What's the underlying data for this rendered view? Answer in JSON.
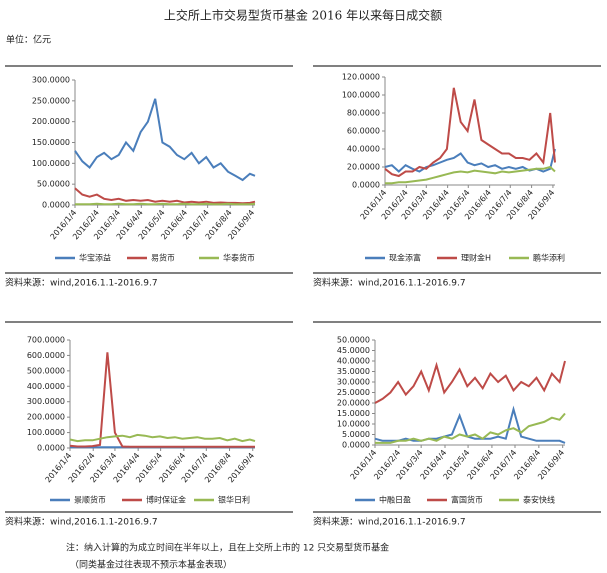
{
  "header": {
    "title": "上交所上市交易型货币基金 2016 年以来每日成交额",
    "unit": "单位：亿元"
  },
  "chart_data": [
    {
      "type": "line",
      "source": "资料来源：wind,2016.1.1-2016.9.7",
      "x": [
        "2016/1/4",
        "2016/1/14",
        "2016/1/24",
        "2016/2/3",
        "2016/2/13",
        "2016/2/23",
        "2016/3/4",
        "2016/3/14",
        "2016/3/24",
        "2016/4/3",
        "2016/4/13",
        "2016/4/23",
        "2016/5/3",
        "2016/5/13",
        "2016/5/23",
        "2016/6/2",
        "2016/6/12",
        "2016/6/22",
        "2016/7/2",
        "2016/7/12",
        "2016/7/22",
        "2016/8/1",
        "2016/8/11",
        "2016/8/21",
        "2016/8/31",
        "2016/9/7"
      ],
      "xlim": [
        "2016/1/4",
        "2016/9/7"
      ],
      "xticks": [
        "2016/1/4",
        "2016/2/4",
        "2016/3/4",
        "2016/4/4",
        "2016/5/4",
        "2016/6/4",
        "2016/7/4",
        "2016/8/4",
        "2016/9/4"
      ],
      "ylim": [
        0,
        300
      ],
      "yticks": [
        {
          "value": 0,
          "label": "0.0000"
        },
        {
          "value": 50,
          "label": "50.0000"
        },
        {
          "value": 100,
          "label": "100.0000"
        },
        {
          "value": 150,
          "label": "150.0000"
        },
        {
          "value": 200,
          "label": "200.0000"
        },
        {
          "value": 250,
          "label": "250.0000"
        },
        {
          "value": 300,
          "label": "300.0000"
        }
      ],
      "series": [
        {
          "name": "华宝添益",
          "color": "#4a7ebb",
          "values": [
            130,
            105,
            90,
            115,
            125,
            110,
            120,
            150,
            130,
            175,
            200,
            255,
            150,
            140,
            120,
            110,
            125,
            100,
            115,
            90,
            100,
            80,
            70,
            60,
            75,
            70
          ]
        },
        {
          "name": "易货币",
          "color": "#be4b48",
          "values": [
            40,
            25,
            20,
            25,
            15,
            12,
            15,
            10,
            12,
            10,
            12,
            8,
            10,
            8,
            10,
            6,
            8,
            6,
            8,
            5,
            6,
            5,
            5,
            4,
            5,
            8
          ]
        },
        {
          "name": "华泰货币",
          "color": "#98b954",
          "values": [
            2,
            2,
            2,
            3,
            2,
            2,
            3,
            2,
            2,
            3,
            2,
            2,
            3,
            2,
            2,
            3,
            2,
            2,
            3,
            2,
            2,
            3,
            2,
            2,
            2,
            3
          ]
        }
      ]
    },
    {
      "type": "line",
      "source": "资料来源：wind,2016.1.1-2016.9.7",
      "x": [
        "2016/1/4",
        "2016/1/14",
        "2016/1/24",
        "2016/2/3",
        "2016/2/13",
        "2016/2/23",
        "2016/3/4",
        "2016/3/14",
        "2016/3/24",
        "2016/4/3",
        "2016/4/13",
        "2016/4/23",
        "2016/5/3",
        "2016/5/13",
        "2016/5/23",
        "2016/6/2",
        "2016/6/12",
        "2016/6/22",
        "2016/7/2",
        "2016/7/12",
        "2016/7/22",
        "2016/8/1",
        "2016/8/11",
        "2016/8/21",
        "2016/8/31",
        "2016/9/7"
      ],
      "xlim": [
        "2016/1/4",
        "2016/9/7"
      ],
      "xticks": [
        "2016/1/4",
        "2016/2/4",
        "2016/3/4",
        "2016/4/4",
        "2016/5/4",
        "2016/6/4",
        "2016/7/4",
        "2016/8/4",
        "2016/9/4"
      ],
      "ylim": [
        0,
        120
      ],
      "yticks": [
        {
          "value": 0,
          "label": "0.0000"
        },
        {
          "value": 20,
          "label": "20.0000"
        },
        {
          "value": 40,
          "label": "40.0000"
        },
        {
          "value": 60,
          "label": "60.0000"
        },
        {
          "value": 80,
          "label": "80.0000"
        },
        {
          "value": 100,
          "label": "100.0000"
        },
        {
          "value": 120,
          "label": "120.0000"
        }
      ],
      "series": [
        {
          "name": "现金添富",
          "color": "#4a7ebb",
          "values": [
            20,
            22,
            15,
            22,
            18,
            15,
            20,
            22,
            25,
            28,
            30,
            35,
            25,
            22,
            24,
            20,
            22,
            18,
            20,
            18,
            20,
            16,
            18,
            15,
            18,
            40
          ]
        },
        {
          "name": "理财金H",
          "color": "#be4b48",
          "values": [
            18,
            12,
            10,
            15,
            15,
            20,
            18,
            25,
            30,
            40,
            108,
            70,
            60,
            95,
            50,
            45,
            40,
            35,
            35,
            30,
            30,
            28,
            35,
            25,
            80,
            25
          ]
        },
        {
          "name": "鹏华添利",
          "color": "#98b954",
          "values": [
            2,
            2,
            3,
            3,
            4,
            5,
            6,
            8,
            10,
            12,
            14,
            15,
            14,
            16,
            15,
            14,
            13,
            15,
            14,
            15,
            16,
            17,
            18,
            18,
            20,
            15
          ]
        }
      ]
    },
    {
      "type": "line",
      "source": "资料来源：wind,2016.1.1-2016.9.7",
      "x": [
        "2016/1/4",
        "2016/1/14",
        "2016/1/24",
        "2016/2/3",
        "2016/2/13",
        "2016/2/23",
        "2016/3/4",
        "2016/3/14",
        "2016/3/24",
        "2016/4/3",
        "2016/4/13",
        "2016/4/23",
        "2016/5/3",
        "2016/5/13",
        "2016/5/23",
        "2016/6/2",
        "2016/6/12",
        "2016/6/22",
        "2016/7/2",
        "2016/7/12",
        "2016/7/22",
        "2016/8/1",
        "2016/8/11",
        "2016/8/21",
        "2016/8/31",
        "2016/9/7"
      ],
      "xlim": [
        "2016/1/4",
        "2016/9/7"
      ],
      "xticks": [
        "2016/1/4",
        "2016/2/4",
        "2016/3/4",
        "2016/4/4",
        "2016/5/4",
        "2016/6/4",
        "2016/7/4",
        "2016/8/4",
        "2016/9/4"
      ],
      "ylim": [
        0,
        700
      ],
      "yticks": [
        {
          "value": 0,
          "label": "0.0000"
        },
        {
          "value": 100,
          "label": "100.0000"
        },
        {
          "value": 200,
          "label": "200.0000"
        },
        {
          "value": 300,
          "label": "300.0000"
        },
        {
          "value": 400,
          "label": "400.0000"
        },
        {
          "value": 500,
          "label": "500.0000"
        },
        {
          "value": 600,
          "label": "600.0000"
        },
        {
          "value": 700,
          "label": "700.0000"
        }
      ],
      "series": [
        {
          "name": "景顺货币",
          "color": "#4a7ebb",
          "values": [
            5,
            5,
            5,
            5,
            5,
            5,
            5,
            5,
            5,
            5,
            5,
            5,
            5,
            5,
            5,
            5,
            5,
            5,
            5,
            5,
            5,
            5,
            5,
            5,
            5,
            5
          ]
        },
        {
          "name": "博时保证金",
          "color": "#be4b48",
          "values": [
            15,
            10,
            10,
            12,
            20,
            620,
            100,
            10,
            8,
            8,
            8,
            8,
            8,
            8,
            8,
            8,
            8,
            8,
            8,
            8,
            8,
            8,
            8,
            8,
            8,
            8
          ]
        },
        {
          "name": "银华日利",
          "color": "#98b954",
          "values": [
            55,
            45,
            50,
            50,
            60,
            70,
            75,
            80,
            70,
            85,
            80,
            70,
            75,
            65,
            70,
            60,
            65,
            70,
            60,
            60,
            65,
            50,
            60,
            45,
            55,
            45
          ]
        }
      ]
    },
    {
      "type": "line",
      "source": "资料来源：wind,2016.1.1-2016.9.7",
      "x": [
        "2016/1/4",
        "2016/1/14",
        "2016/1/24",
        "2016/2/3",
        "2016/2/13",
        "2016/2/23",
        "2016/3/4",
        "2016/3/14",
        "2016/3/24",
        "2016/4/3",
        "2016/4/13",
        "2016/4/23",
        "2016/5/3",
        "2016/5/13",
        "2016/5/23",
        "2016/6/2",
        "2016/6/12",
        "2016/6/22",
        "2016/7/2",
        "2016/7/12",
        "2016/7/22",
        "2016/8/1",
        "2016/8/11",
        "2016/8/21",
        "2016/8/31",
        "2016/9/7"
      ],
      "xlim": [
        "2016/1/4",
        "2016/9/7"
      ],
      "xticks": [
        "2016/1/4",
        "2016/2/4",
        "2016/3/4",
        "2016/4/4",
        "2016/5/4",
        "2016/6/4",
        "2016/7/4",
        "2016/8/4",
        "2016/9/4"
      ],
      "ylim": [
        0,
        50
      ],
      "yticks": [
        {
          "value": 0,
          "label": "0.0000"
        },
        {
          "value": 5,
          "label": "5.0000"
        },
        {
          "value": 10,
          "label": "10.0000"
        },
        {
          "value": 15,
          "label": "15.0000"
        },
        {
          "value": 20,
          "label": "20.0000"
        },
        {
          "value": 25,
          "label": "25.0000"
        },
        {
          "value": 30,
          "label": "30.0000"
        },
        {
          "value": 35,
          "label": "35.0000"
        },
        {
          "value": 40,
          "label": "40.0000"
        },
        {
          "value": 45,
          "label": "45.0000"
        },
        {
          "value": 50,
          "label": "50.0000"
        }
      ],
      "series": [
        {
          "name": "中融日盈",
          "color": "#4a7ebb",
          "values": [
            3,
            2,
            2,
            2,
            3,
            2,
            2,
            3,
            3,
            4,
            5,
            14,
            4,
            3,
            3,
            3,
            4,
            3,
            17,
            4,
            3,
            2,
            2,
            2,
            2,
            1
          ]
        },
        {
          "name": "富国货币",
          "color": "#be4b48",
          "values": [
            20,
            22,
            25,
            30,
            24,
            28,
            35,
            26,
            38,
            25,
            30,
            36,
            28,
            32,
            27,
            34,
            30,
            33,
            26,
            30,
            28,
            32,
            26,
            34,
            30,
            40
          ]
        },
        {
          "name": "泰安快线",
          "color": "#98b954",
          "values": [
            1,
            1,
            1,
            2,
            2,
            3,
            2,
            3,
            2,
            4,
            3,
            5,
            4,
            5,
            3,
            6,
            5,
            7,
            8,
            6,
            9,
            10,
            11,
            13,
            12,
            15
          ]
        }
      ]
    }
  ],
  "footer": {
    "note": "注：纳入计算的为成立时间在半年以上，且在上交所上市的 12 只交易型货币基金",
    "disclaimer": "（同类基金过往表现不预示本基金表现）"
  }
}
